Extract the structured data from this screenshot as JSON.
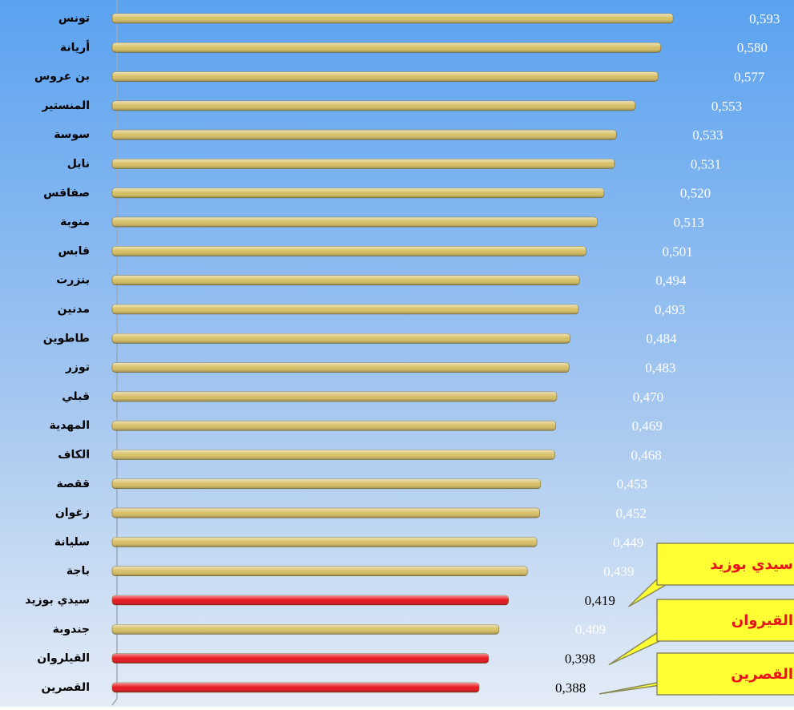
{
  "chart_data": {
    "type": "bar",
    "orientation": "horizontal",
    "categories": [
      "تونس",
      "أريانة",
      "بن عروس",
      "المنستير",
      "سوسة",
      "نابل",
      "صفاقس",
      "منوبة",
      "قابس",
      "بنزرت",
      "مدنين",
      "طاطوين",
      "توزر",
      "قبلي",
      "المهدية",
      "الكاف",
      "ققصة",
      "زغوان",
      "سليانة",
      "باجة",
      "سيدي بوزيد",
      "جندوبة",
      "القيلروان",
      "القصرين"
    ],
    "values": [
      0.593,
      0.58,
      0.577,
      0.553,
      0.533,
      0.531,
      0.52,
      0.513,
      0.501,
      0.494,
      0.493,
      0.484,
      0.483,
      0.47,
      0.469,
      0.468,
      0.453,
      0.452,
      0.449,
      0.439,
      0.419,
      0.409,
      0.398,
      0.388
    ],
    "value_labels": [
      "0,593",
      "0,580",
      "0,577",
      "0,553",
      "0,533",
      "0,531",
      "0,520",
      "0,513",
      "0,501",
      "0,494",
      "0,493",
      "0,484",
      "0,483",
      "0,470",
      "0,469",
      "0,468",
      "0,453",
      "0,452",
      "0,449",
      "0,439",
      "0,419",
      "0,409",
      "0,398",
      "0,388"
    ],
    "colors": [
      "#d6bf63",
      "#d6bf63",
      "#d6bf63",
      "#d6bf63",
      "#d6bf63",
      "#d6bf63",
      "#d6bf63",
      "#d6bf63",
      "#d6bf63",
      "#d6bf63",
      "#d6bf63",
      "#d6bf63",
      "#d6bf63",
      "#d6bf63",
      "#d6bf63",
      "#d6bf63",
      "#d6bf63",
      "#d6bf63",
      "#d6bf63",
      "#d6bf63",
      "#e8141c",
      "#d6bf63",
      "#e8141c",
      "#e8141c"
    ],
    "value_label_colors": [
      "#ffffff",
      "#ffffff",
      "#ffffff",
      "#ffffff",
      "#ffffff",
      "#ffffff",
      "#ffffff",
      "#ffffff",
      "#ffffff",
      "#ffffff",
      "#ffffff",
      "#ffffff",
      "#ffffff",
      "#ffffff",
      "#ffffff",
      "#ffffff",
      "#ffffff",
      "#ffffff",
      "#ffffff",
      "#ffffff",
      "#000000",
      "#ffffff",
      "#000000",
      "#000000"
    ],
    "xlim": [
      0,
      0.72
    ],
    "annotations": [
      {
        "text": "سيدي بوزيد",
        "target": 20
      },
      {
        "text": "القيروان",
        "target": 22
      },
      {
        "text": "القصرين",
        "target": 23
      }
    ]
  }
}
